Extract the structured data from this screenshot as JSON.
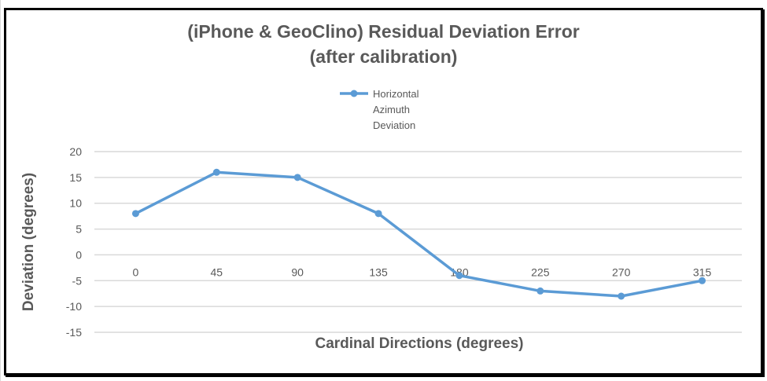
{
  "chart_data": {
    "type": "line",
    "title_line1": "(iPhone & GeoClino) Residual Deviation Error",
    "title_line2": "(after calibration)",
    "xlabel": "Cardinal Directions (degrees)",
    "ylabel": "Deviation (degrees)",
    "categories": [
      "0",
      "45",
      "90",
      "135",
      "180",
      "225",
      "270",
      "315"
    ],
    "series": [
      {
        "name": "Horizontal Azimuth Deviation",
        "legend_lines": [
          "Horizontal",
          "Azimuth",
          "Deviation"
        ],
        "values": [
          8,
          16,
          15,
          8,
          -4,
          -7,
          -8,
          -5
        ],
        "color": "#5b9bd5"
      }
    ],
    "ylim": [
      -15,
      20
    ],
    "yticks": [
      20,
      15,
      10,
      5,
      0,
      -5,
      -10,
      -15
    ],
    "grid": true,
    "legend_position": "top"
  }
}
